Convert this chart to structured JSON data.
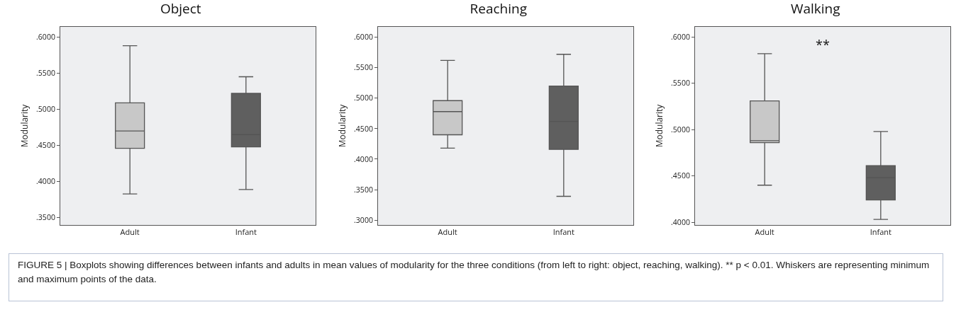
{
  "chart_data": [
    {
      "type": "box",
      "title": "Object",
      "ylabel": "Modularity",
      "categories": [
        "Adult",
        "Infant"
      ],
      "colors": [
        "#c8c8c8",
        "#5f5f5f"
      ],
      "boxes": [
        {
          "low": 0.383,
          "q1": 0.446,
          "median": 0.47,
          "q3": 0.509,
          "high": 0.588
        },
        {
          "low": 0.389,
          "q1": 0.448,
          "median": 0.465,
          "q3": 0.522,
          "high": 0.545
        }
      ],
      "ylim": [
        0.34,
        0.614
      ],
      "yticks": [
        {
          "value": 0.35,
          "label": ".3500"
        },
        {
          "value": 0.4,
          "label": ".4000"
        },
        {
          "value": 0.45,
          "label": ".4500"
        },
        {
          "value": 0.5,
          "label": ".5000"
        },
        {
          "value": 0.55,
          "label": ".5500"
        },
        {
          "value": 0.6,
          "label": ".6000"
        }
      ],
      "grid": false,
      "legend": false,
      "annotations": [
        "FIGURE 5 | Boxplots showing differences between infants and adults in mean values of modularity for the three conditions (from left to right: object, reaching, walking). ** p < 0.01. Whiskers are representing minimum and maximum points of the data."
      ]
    },
    {
      "type": "box",
      "title": "Reaching",
      "ylabel": "Modularity",
      "categories": [
        "Adult",
        "Infant"
      ],
      "colors": [
        "#c8c8c8",
        "#5f5f5f"
      ],
      "boxes": [
        {
          "low": 0.418,
          "q1": 0.44,
          "median": 0.478,
          "q3": 0.496,
          "high": 0.562
        },
        {
          "low": 0.339,
          "q1": 0.416,
          "median": 0.462,
          "q3": 0.52,
          "high": 0.572
        }
      ],
      "ylim": [
        0.292,
        0.617
      ],
      "yticks": [
        {
          "value": 0.3,
          "label": ".3000"
        },
        {
          "value": 0.35,
          "label": ".3500"
        },
        {
          "value": 0.4,
          "label": ".4000"
        },
        {
          "value": 0.45,
          "label": ".4500"
        },
        {
          "value": 0.5,
          "label": ".5000"
        },
        {
          "value": 0.55,
          "label": ".5500"
        },
        {
          "value": 0.6,
          "label": ".6000"
        }
      ],
      "grid": false,
      "legend": false
    },
    {
      "type": "box",
      "title": "Walking",
      "ylabel": "Modularity",
      "categories": [
        "Adult",
        "Infant"
      ],
      "colors": [
        "#c8c8c8",
        "#5f5f5f"
      ],
      "boxes": [
        {
          "low": 0.44,
          "q1": 0.486,
          "median": 0.488,
          "q3": 0.531,
          "high": 0.582
        },
        {
          "low": 0.403,
          "q1": 0.424,
          "median": 0.448,
          "q3": 0.461,
          "high": 0.498
        }
      ],
      "ylim": [
        0.397,
        0.611
      ],
      "yticks": [
        {
          "value": 0.4,
          "label": ".4000"
        },
        {
          "value": 0.45,
          "label": ".4500"
        },
        {
          "value": 0.5,
          "label": ".5000"
        },
        {
          "value": 0.55,
          "label": ".5500"
        },
        {
          "value": 0.6,
          "label": ".6000"
        }
      ],
      "grid": false,
      "legend": false,
      "annotations": [
        "**"
      ]
    }
  ]
}
